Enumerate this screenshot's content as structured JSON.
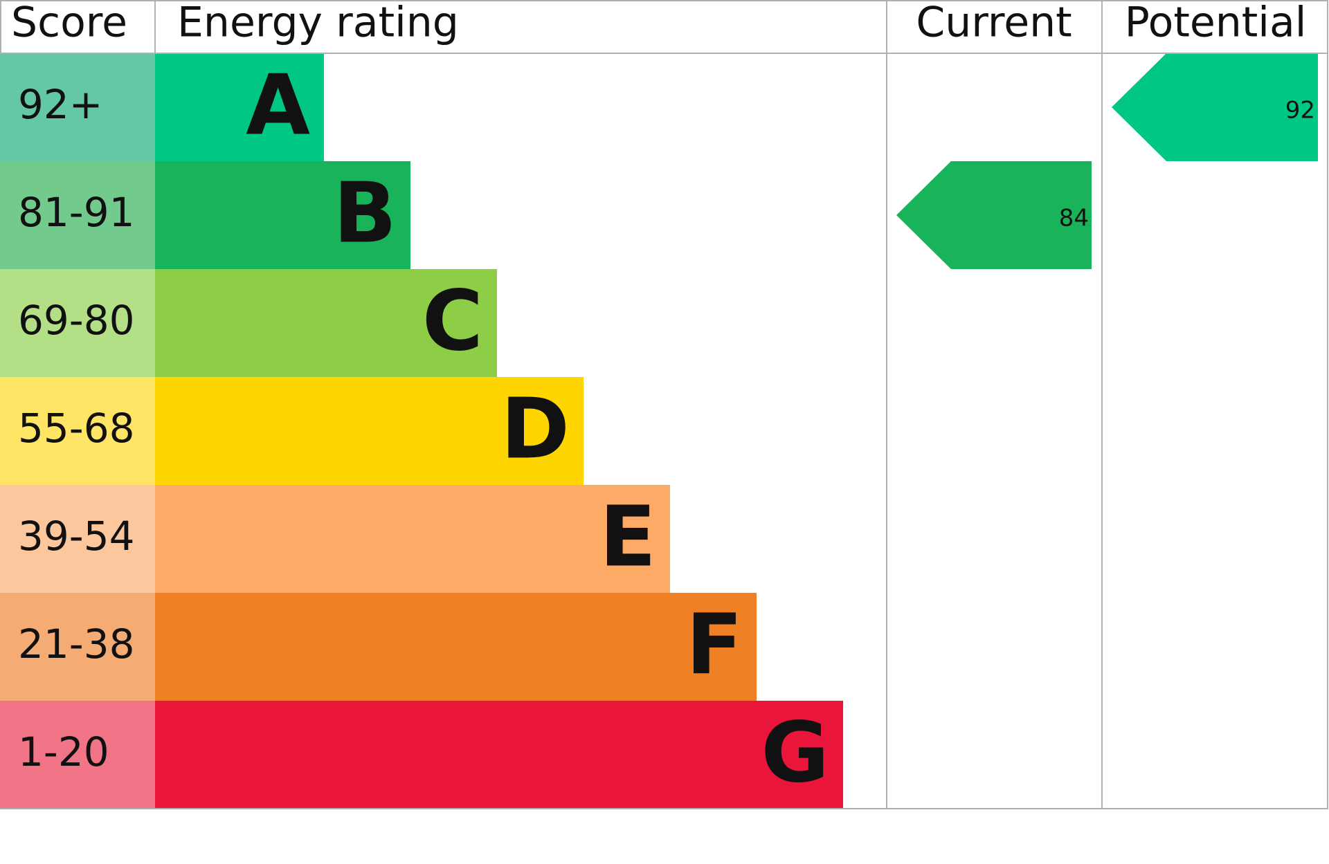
{
  "chart_data": {
    "type": "epc",
    "headers": {
      "score": "Score",
      "rating": "Energy rating",
      "current": "Current",
      "potential": "Potential"
    },
    "bands": [
      {
        "score": "92+",
        "rating": "A",
        "color": "#00c781",
        "score_color": "#64c8a4"
      },
      {
        "score": "81-91",
        "rating": "B",
        "color": "#19b459",
        "score_color": "#72cb8c"
      },
      {
        "score": "69-80",
        "rating": "C",
        "color": "#8dce46",
        "score_color": "#b3e086"
      },
      {
        "score": "55-68",
        "rating": "D",
        "color": "#ffd500",
        "score_color": "#ffe566"
      },
      {
        "score": "39-54",
        "rating": "E",
        "color": "#fcaa65",
        "score_color": "#fdc79e"
      },
      {
        "score": "21-38",
        "rating": "F",
        "color": "#ef8023",
        "score_color": "#f4ac74"
      },
      {
        "score": "1-20",
        "rating": "G",
        "color": "#e9153b",
        "score_color": "#f27487"
      }
    ],
    "current": {
      "value": 84,
      "color": "#19b459"
    },
    "potential": {
      "value": 92,
      "color": "#00c781"
    }
  }
}
